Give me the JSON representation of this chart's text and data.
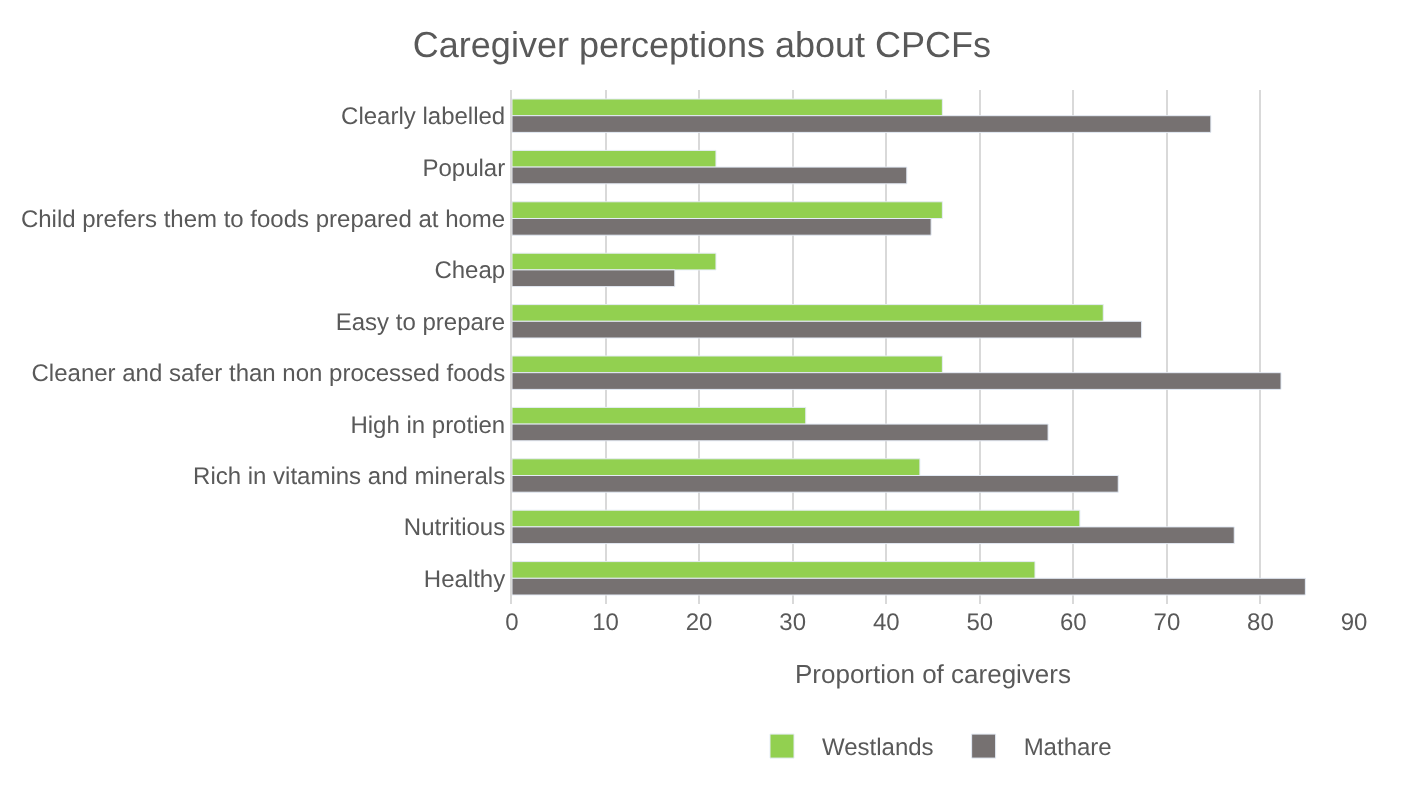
{
  "chart_data": {
    "type": "bar",
    "orientation": "horizontal",
    "title": "Caregiver perceptions about CPCFs",
    "xlabel": "Proportion of caregivers",
    "categories": [
      "Clearly labelled",
      "Popular",
      "Child prefers them to foods prepared at home",
      "Cheap",
      "Easy to prepare",
      "Cleaner and safer than non processed foods",
      "High in protien",
      "Rich in vitamins and minerals",
      "Nutritious",
      "Healthy"
    ],
    "series": [
      {
        "name": "Westlands",
        "color": "#92d050",
        "values": [
          46.0,
          21.8,
          46.0,
          21.8,
          63.2,
          46.0,
          31.4,
          43.6,
          60.7,
          55.9
        ]
      },
      {
        "name": "Mathare",
        "color": "#767171",
        "values": [
          74.7,
          42.2,
          44.8,
          17.4,
          67.3,
          82.2,
          57.3,
          64.8,
          77.2,
          84.8
        ]
      }
    ],
    "xlim": [
      0,
      90
    ],
    "xticks": [
      0,
      10,
      20,
      30,
      40,
      50,
      60,
      70,
      80,
      90
    ],
    "grid": "x",
    "legend": "bottom"
  }
}
